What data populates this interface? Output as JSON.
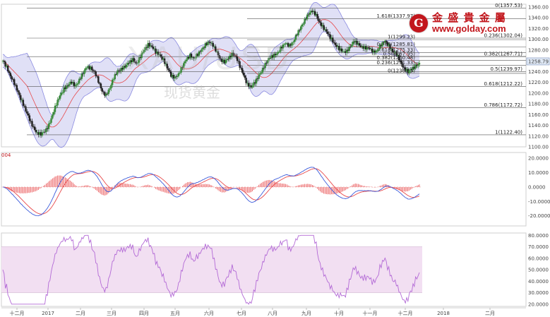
{
  "brand": {
    "name_cn": "金 盛 貴 金 屬",
    "url": "www.golday.com",
    "logo_letter": "G",
    "logo_color": "#c2161c",
    "url_color": "#c2161c"
  },
  "watermark": {
    "text_en": "XAU/USD",
    "text_cn": "现货黄金"
  },
  "panels": {
    "macd_label": "004",
    "current_price": "1258.79"
  },
  "chart_data": [
    {
      "type": "candlestick",
      "title": "",
      "series_name": "XAU/USD",
      "ylim": [
        1100,
        1365
      ],
      "y_ticks": [
        1360,
        1340,
        1320,
        1300,
        1280,
        1260,
        1240,
        1220,
        1200,
        1180,
        1160,
        1140,
        1120,
        1100
      ],
      "y_tick_labels": [
        "1360.00",
        "1340.00",
        "1320.00",
        "1300.00",
        "1280.00",
        "1260.00",
        "1240.00",
        "1220.00",
        "1200.00",
        "1180.00",
        "1160.00",
        "1140.00",
        "1120.00",
        "1100.00"
      ],
      "x_months": [
        "十二月",
        "2017",
        "二月",
        "三月",
        "四月",
        "五月",
        "六月",
        "七月",
        "八月",
        "九月",
        "十月",
        "十一月",
        "十二月",
        "2018",
        "二月"
      ],
      "close_path": [
        1260,
        1248,
        1232,
        1218,
        1200,
        1185,
        1168,
        1150,
        1135,
        1126,
        1124,
        1128,
        1140,
        1160,
        1180,
        1195,
        1208,
        1215,
        1220,
        1212,
        1225,
        1238,
        1248,
        1246,
        1240,
        1222,
        1202,
        1196,
        1210,
        1228,
        1240,
        1245,
        1250,
        1256,
        1262,
        1255,
        1268,
        1280,
        1290,
        1287,
        1276,
        1270,
        1262,
        1248,
        1232,
        1228,
        1236,
        1250,
        1262,
        1270,
        1265,
        1272,
        1280,
        1290,
        1296,
        1288,
        1275,
        1262,
        1258,
        1264,
        1272,
        1268,
        1250,
        1232,
        1216,
        1212,
        1220,
        1232,
        1245,
        1258,
        1266,
        1270,
        1276,
        1286,
        1292,
        1288,
        1296,
        1310,
        1322,
        1336,
        1348,
        1352,
        1344,
        1330,
        1320,
        1310,
        1300,
        1290,
        1282,
        1276,
        1278,
        1288,
        1296,
        1290,
        1286,
        1284,
        1282,
        1276,
        1280,
        1290,
        1296,
        1288,
        1278,
        1272,
        1258,
        1246,
        1240,
        1244,
        1250,
        1256
      ],
      "bollinger": {
        "period": 20,
        "stdev": 2
      },
      "moving_average": {
        "period": 20
      },
      "current_price": 1258.79,
      "fibonacci_upper": [
        {
          "label": "1.618(1337.97)",
          "value": 1337.97
        },
        {
          "label": "1(1299.23)",
          "value": 1299.23
        },
        {
          "label": "0.786(1285.81)",
          "value": 1285.81
        },
        {
          "label": "0.618(1275.33)",
          "value": 1275.33
        },
        {
          "label": "0.5(1267.95)",
          "value": 1267.95
        },
        {
          "label": "0.382(1260.48)",
          "value": 1260.48
        },
        {
          "label": "0.236(1251.33)",
          "value": 1251.33
        },
        {
          "label": "0(1236.53)",
          "value": 1236.53
        }
      ],
      "fibonacci_lower": [
        {
          "label": "0(1357.53)",
          "value": 1357.53
        },
        {
          "label": "0.236(1302.04)",
          "value": 1302.04
        },
        {
          "label": "0.382(1267.71)",
          "value": 1267.71
        },
        {
          "label": "0.5(1239.97)",
          "value": 1239.97
        },
        {
          "label": "0.618(1212.22)",
          "value": 1212.22
        },
        {
          "label": "0.786(1172.72)",
          "value": 1172.72
        },
        {
          "label": "1(1122.40)",
          "value": 1122.4
        }
      ]
    },
    {
      "type": "macd",
      "title": "",
      "ylim": [
        -27,
        24
      ],
      "y_ticks": [
        20,
        10,
        0,
        -10,
        -20
      ],
      "y_tick_labels": [
        "20.0000",
        "10.0000",
        "0.0000",
        "-10.0000",
        "-20.0000"
      ],
      "colors": {
        "macd": "#3b5bdb",
        "signal": "#e8484a",
        "hist": "#e8484a"
      }
    },
    {
      "type": "rsi",
      "title": "",
      "ylim": [
        18,
        82
      ],
      "band": [
        30,
        70
      ],
      "y_ticks": [
        80,
        70,
        60,
        50,
        40,
        30,
        20
      ],
      "y_tick_labels": [
        "80.0000",
        "70.0000",
        "60.0000",
        "50.0000",
        "40.0000",
        "30.0000",
        "20.0000"
      ],
      "colors": {
        "line": "#b36ad6",
        "band": "#f2dff2"
      }
    }
  ],
  "colors": {
    "candle_up": "#3a8a3a",
    "candle_down": "#222222",
    "boll_fill": "#ccccf0",
    "boll_line": "#8a8ae0",
    "ma": "#e8484a",
    "fib_line": "#555555"
  }
}
